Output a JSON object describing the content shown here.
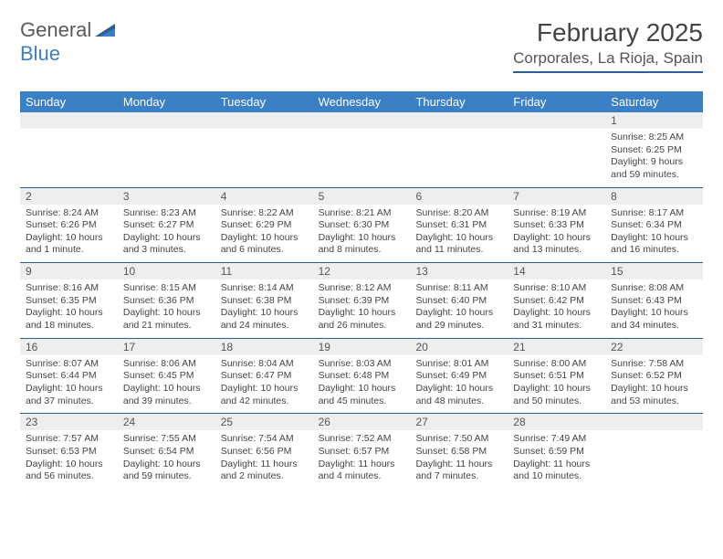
{
  "logo": {
    "part1": "General",
    "part2": "Blue"
  },
  "title": "February 2025",
  "subtitle": "Corporales, La Rioja, Spain",
  "colors": {
    "header_bg": "#3b7fc4",
    "border": "#2c5f91",
    "daynum_bg": "#eeeeee",
    "text": "#444444"
  },
  "weekdays": [
    "Sunday",
    "Monday",
    "Tuesday",
    "Wednesday",
    "Thursday",
    "Friday",
    "Saturday"
  ],
  "weeks": [
    [
      {
        "num": "",
        "sunrise": "",
        "sunset": "",
        "daylight": ""
      },
      {
        "num": "",
        "sunrise": "",
        "sunset": "",
        "daylight": ""
      },
      {
        "num": "",
        "sunrise": "",
        "sunset": "",
        "daylight": ""
      },
      {
        "num": "",
        "sunrise": "",
        "sunset": "",
        "daylight": ""
      },
      {
        "num": "",
        "sunrise": "",
        "sunset": "",
        "daylight": ""
      },
      {
        "num": "",
        "sunrise": "",
        "sunset": "",
        "daylight": ""
      },
      {
        "num": "1",
        "sunrise": "Sunrise: 8:25 AM",
        "sunset": "Sunset: 6:25 PM",
        "daylight": "Daylight: 9 hours and 59 minutes."
      }
    ],
    [
      {
        "num": "2",
        "sunrise": "Sunrise: 8:24 AM",
        "sunset": "Sunset: 6:26 PM",
        "daylight": "Daylight: 10 hours and 1 minute."
      },
      {
        "num": "3",
        "sunrise": "Sunrise: 8:23 AM",
        "sunset": "Sunset: 6:27 PM",
        "daylight": "Daylight: 10 hours and 3 minutes."
      },
      {
        "num": "4",
        "sunrise": "Sunrise: 8:22 AM",
        "sunset": "Sunset: 6:29 PM",
        "daylight": "Daylight: 10 hours and 6 minutes."
      },
      {
        "num": "5",
        "sunrise": "Sunrise: 8:21 AM",
        "sunset": "Sunset: 6:30 PM",
        "daylight": "Daylight: 10 hours and 8 minutes."
      },
      {
        "num": "6",
        "sunrise": "Sunrise: 8:20 AM",
        "sunset": "Sunset: 6:31 PM",
        "daylight": "Daylight: 10 hours and 11 minutes."
      },
      {
        "num": "7",
        "sunrise": "Sunrise: 8:19 AM",
        "sunset": "Sunset: 6:33 PM",
        "daylight": "Daylight: 10 hours and 13 minutes."
      },
      {
        "num": "8",
        "sunrise": "Sunrise: 8:17 AM",
        "sunset": "Sunset: 6:34 PM",
        "daylight": "Daylight: 10 hours and 16 minutes."
      }
    ],
    [
      {
        "num": "9",
        "sunrise": "Sunrise: 8:16 AM",
        "sunset": "Sunset: 6:35 PM",
        "daylight": "Daylight: 10 hours and 18 minutes."
      },
      {
        "num": "10",
        "sunrise": "Sunrise: 8:15 AM",
        "sunset": "Sunset: 6:36 PM",
        "daylight": "Daylight: 10 hours and 21 minutes."
      },
      {
        "num": "11",
        "sunrise": "Sunrise: 8:14 AM",
        "sunset": "Sunset: 6:38 PM",
        "daylight": "Daylight: 10 hours and 24 minutes."
      },
      {
        "num": "12",
        "sunrise": "Sunrise: 8:12 AM",
        "sunset": "Sunset: 6:39 PM",
        "daylight": "Daylight: 10 hours and 26 minutes."
      },
      {
        "num": "13",
        "sunrise": "Sunrise: 8:11 AM",
        "sunset": "Sunset: 6:40 PM",
        "daylight": "Daylight: 10 hours and 29 minutes."
      },
      {
        "num": "14",
        "sunrise": "Sunrise: 8:10 AM",
        "sunset": "Sunset: 6:42 PM",
        "daylight": "Daylight: 10 hours and 31 minutes."
      },
      {
        "num": "15",
        "sunrise": "Sunrise: 8:08 AM",
        "sunset": "Sunset: 6:43 PM",
        "daylight": "Daylight: 10 hours and 34 minutes."
      }
    ],
    [
      {
        "num": "16",
        "sunrise": "Sunrise: 8:07 AM",
        "sunset": "Sunset: 6:44 PM",
        "daylight": "Daylight: 10 hours and 37 minutes."
      },
      {
        "num": "17",
        "sunrise": "Sunrise: 8:06 AM",
        "sunset": "Sunset: 6:45 PM",
        "daylight": "Daylight: 10 hours and 39 minutes."
      },
      {
        "num": "18",
        "sunrise": "Sunrise: 8:04 AM",
        "sunset": "Sunset: 6:47 PM",
        "daylight": "Daylight: 10 hours and 42 minutes."
      },
      {
        "num": "19",
        "sunrise": "Sunrise: 8:03 AM",
        "sunset": "Sunset: 6:48 PM",
        "daylight": "Daylight: 10 hours and 45 minutes."
      },
      {
        "num": "20",
        "sunrise": "Sunrise: 8:01 AM",
        "sunset": "Sunset: 6:49 PM",
        "daylight": "Daylight: 10 hours and 48 minutes."
      },
      {
        "num": "21",
        "sunrise": "Sunrise: 8:00 AM",
        "sunset": "Sunset: 6:51 PM",
        "daylight": "Daylight: 10 hours and 50 minutes."
      },
      {
        "num": "22",
        "sunrise": "Sunrise: 7:58 AM",
        "sunset": "Sunset: 6:52 PM",
        "daylight": "Daylight: 10 hours and 53 minutes."
      }
    ],
    [
      {
        "num": "23",
        "sunrise": "Sunrise: 7:57 AM",
        "sunset": "Sunset: 6:53 PM",
        "daylight": "Daylight: 10 hours and 56 minutes."
      },
      {
        "num": "24",
        "sunrise": "Sunrise: 7:55 AM",
        "sunset": "Sunset: 6:54 PM",
        "daylight": "Daylight: 10 hours and 59 minutes."
      },
      {
        "num": "25",
        "sunrise": "Sunrise: 7:54 AM",
        "sunset": "Sunset: 6:56 PM",
        "daylight": "Daylight: 11 hours and 2 minutes."
      },
      {
        "num": "26",
        "sunrise": "Sunrise: 7:52 AM",
        "sunset": "Sunset: 6:57 PM",
        "daylight": "Daylight: 11 hours and 4 minutes."
      },
      {
        "num": "27",
        "sunrise": "Sunrise: 7:50 AM",
        "sunset": "Sunset: 6:58 PM",
        "daylight": "Daylight: 11 hours and 7 minutes."
      },
      {
        "num": "28",
        "sunrise": "Sunrise: 7:49 AM",
        "sunset": "Sunset: 6:59 PM",
        "daylight": "Daylight: 11 hours and 10 minutes."
      },
      {
        "num": "",
        "sunrise": "",
        "sunset": "",
        "daylight": ""
      }
    ]
  ]
}
